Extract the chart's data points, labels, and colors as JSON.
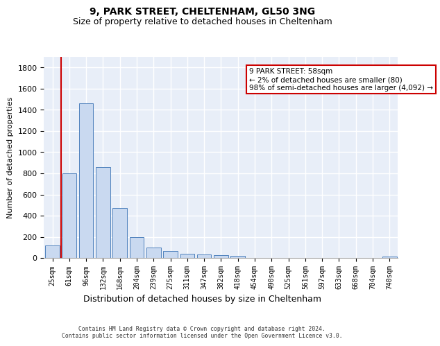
{
  "title1": "9, PARK STREET, CHELTENHAM, GL50 3NG",
  "title2": "Size of property relative to detached houses in Cheltenham",
  "xlabel": "Distribution of detached houses by size in Cheltenham",
  "ylabel": "Number of detached properties",
  "categories": [
    "25sqm",
    "61sqm",
    "96sqm",
    "132sqm",
    "168sqm",
    "204sqm",
    "239sqm",
    "275sqm",
    "311sqm",
    "347sqm",
    "382sqm",
    "418sqm",
    "454sqm",
    "490sqm",
    "525sqm",
    "561sqm",
    "597sqm",
    "633sqm",
    "668sqm",
    "704sqm",
    "740sqm"
  ],
  "values": [
    120,
    800,
    1460,
    860,
    470,
    200,
    100,
    65,
    40,
    35,
    30,
    22,
    0,
    0,
    0,
    0,
    0,
    0,
    0,
    0,
    15
  ],
  "bar_color": "#c9d9f0",
  "bar_edge_color": "#4f81bd",
  "vline_color": "#cc0000",
  "annotation_text": "9 PARK STREET: 58sqm\n← 2% of detached houses are smaller (80)\n98% of semi-detached houses are larger (4,092) →",
  "annotation_box_color": "#ffffff",
  "annotation_border_color": "#cc0000",
  "ylim": [
    0,
    1900
  ],
  "yticks": [
    0,
    200,
    400,
    600,
    800,
    1000,
    1200,
    1400,
    1600,
    1800
  ],
  "background_color": "#e8eef8",
  "grid_color": "#ffffff",
  "footer": "Contains HM Land Registry data © Crown copyright and database right 2024.\nContains public sector information licensed under the Open Government Licence v3.0."
}
